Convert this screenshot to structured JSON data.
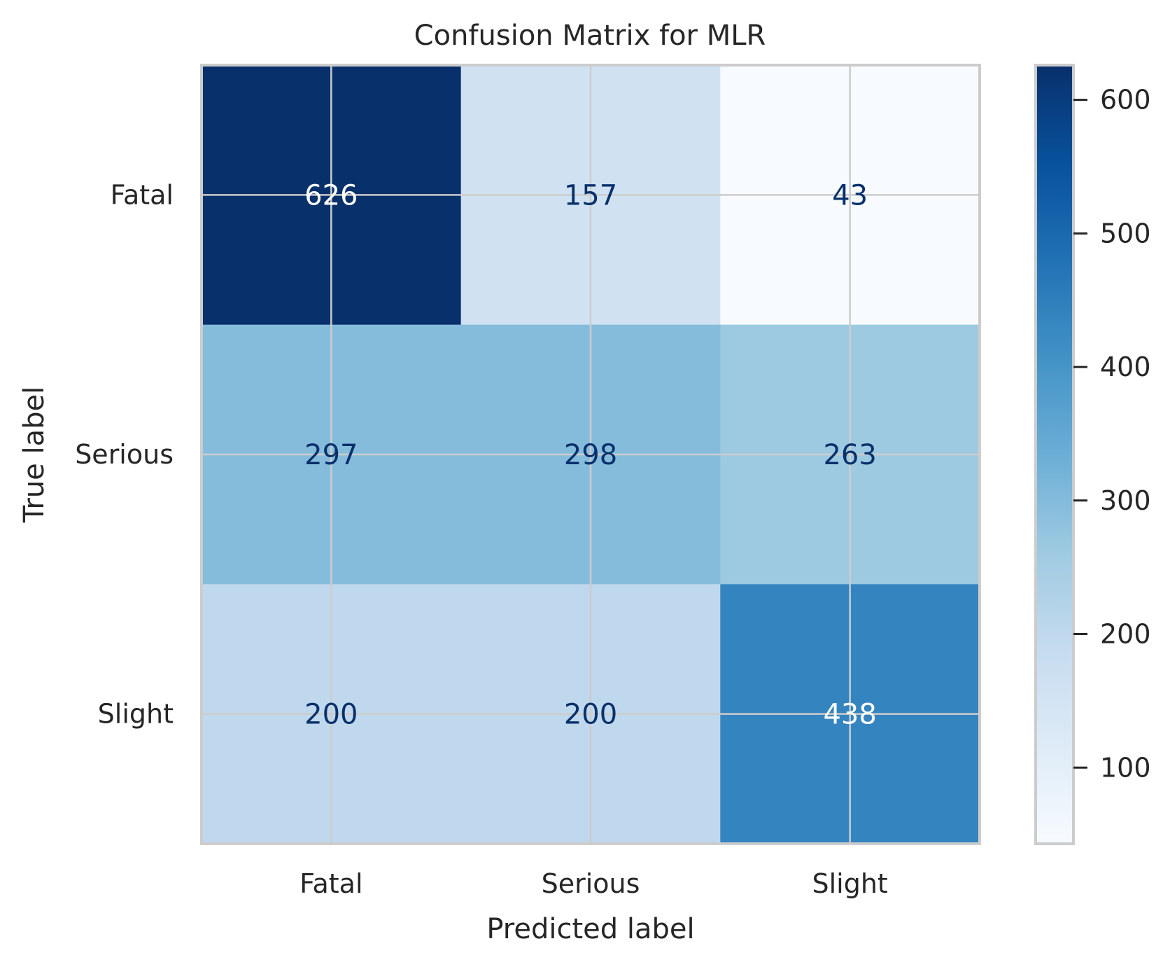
{
  "chart_data": {
    "type": "heatmap",
    "title": "Confusion Matrix for MLR",
    "xlabel": "Predicted label",
    "ylabel": "True label",
    "x_categories": [
      "Fatal",
      "Serious",
      "Slight"
    ],
    "y_categories": [
      "Fatal",
      "Serious",
      "Slight"
    ],
    "matrix": [
      [
        626,
        157,
        43
      ],
      [
        297,
        298,
        263
      ],
      [
        200,
        200,
        438
      ]
    ],
    "colormap": "Blues",
    "colorbar": {
      "range": [
        43,
        626
      ],
      "ticks": [
        100,
        200,
        300,
        400,
        500,
        600
      ]
    },
    "grid": true,
    "colors": {
      "text_dark": "#08306b",
      "text_light": "#ffffff",
      "frame": "#cccccc",
      "grid": "#cccccc",
      "label": "#262626"
    }
  }
}
